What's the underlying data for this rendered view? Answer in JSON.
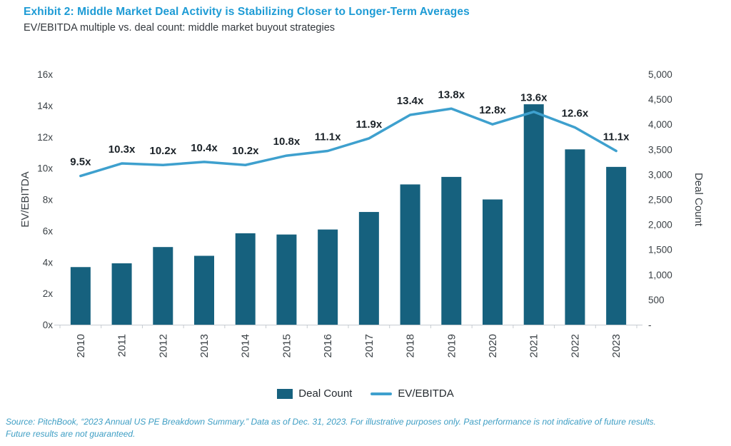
{
  "header": {
    "title": "Exhibit 2: Middle Market Deal Activity is Stabilizing Closer to Longer-Term Averages",
    "subtitle": "EV/EBITDA multiple vs. deal count: middle market buyout strategies"
  },
  "chart_data": {
    "type": "combo",
    "categories": [
      "2010",
      "2011",
      "2012",
      "2013",
      "2014",
      "2015",
      "2016",
      "2017",
      "2018",
      "2019",
      "2020",
      "2021",
      "2022",
      "2023"
    ],
    "series": [
      {
        "name": "Deal Count",
        "chart_type": "bar",
        "axis": "right",
        "values": [
          1150,
          1225,
          1550,
          1375,
          1825,
          1800,
          1900,
          2250,
          2800,
          2950,
          2500,
          4400,
          3500,
          3150
        ]
      },
      {
        "name": "EV/EBITDA",
        "chart_type": "line",
        "axis": "left",
        "values": [
          9.5,
          10.3,
          10.2,
          10.4,
          10.2,
          10.8,
          11.1,
          11.9,
          13.4,
          13.8,
          12.8,
          13.6,
          12.6,
          11.1
        ],
        "point_labels": [
          "9.5x",
          "10.3x",
          "10.2x",
          "10.4x",
          "10.2x",
          "10.8x",
          "11.1x",
          "11.9x",
          "13.4x",
          "13.8x",
          "12.8x",
          "13.6x",
          "12.6x",
          "11.1x"
        ]
      }
    ],
    "left_axis": {
      "label": "EV/EBITDA",
      "min": 0,
      "max": 16,
      "step": 2,
      "ticks": [
        "0x",
        "2x",
        "4x",
        "6x",
        "8x",
        "10x",
        "12x",
        "14x",
        "16x"
      ]
    },
    "right_axis": {
      "label": "Deal Count",
      "min": 0,
      "max": 5000,
      "step": 500,
      "ticks": [
        "-",
        "500",
        "1,000",
        "1,500",
        "2,000",
        "2,500",
        "3,000",
        "3,500",
        "4,000",
        "4,500",
        "5,000"
      ]
    },
    "legend": [
      {
        "label": "Deal Count",
        "swatch": "bar"
      },
      {
        "label": "EV/EBITDA",
        "swatch": "line"
      }
    ],
    "grid": false,
    "legend_position": "bottom-center"
  },
  "colors": {
    "bar": "#16617E",
    "line": "#3EA0CE",
    "title": "#1D9BD5",
    "axis_text": "#3A4045",
    "label_text": "#1B2228",
    "gridline": "#C7CCD1",
    "source_text": "#3E9EC4"
  },
  "footer": {
    "source_line1": "Source: PitchBook, “2023 Annual US PE Breakdown Summary.” Data as of Dec. 31, 2023. For illustrative purposes only. Past performance is not indicative of future results.",
    "source_line2": "Future results are not guaranteed."
  }
}
